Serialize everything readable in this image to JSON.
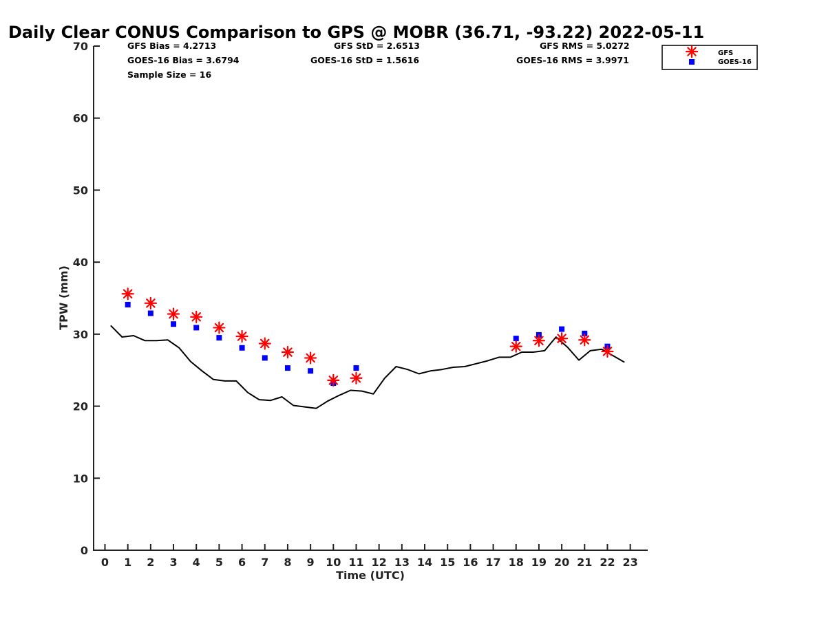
{
  "chart_data": {
    "type": "scatter",
    "title": "Daily Clear CONUS Comparison to GPS @ MOBR (36.71, -93.22) 2022-05-11",
    "xlabel": "Time (UTC)",
    "ylabel": "TPW (mm)",
    "xlim": [
      -0.5,
      23.75
    ],
    "ylim": [
      0,
      70
    ],
    "xticks": [
      "0",
      "1",
      "2",
      "3",
      "4",
      "5",
      "6",
      "7",
      "8",
      "9",
      "10",
      "11",
      "12",
      "13",
      "14",
      "15",
      "16",
      "17",
      "18",
      "19",
      "20",
      "21",
      "22",
      "23"
    ],
    "yticks": [
      "0",
      "10",
      "20",
      "30",
      "40",
      "50",
      "60",
      "70"
    ],
    "stats": {
      "gfs_bias": "GFS Bias = 4.2713",
      "goes_bias": "GOES-16 Bias = 3.6794",
      "sample_size": "Sample Size = 16",
      "gfs_std": "GFS StD = 2.6513",
      "goes_std": "GOES-16 StD = 1.5616",
      "gfs_rms": "GFS RMS = 5.0272",
      "goes_rms": "GOES-16 RMS = 3.9971"
    },
    "legend": {
      "position": "top-right",
      "entries": [
        "GFS",
        "GOES-16"
      ]
    },
    "series": [
      {
        "name": "GFS",
        "marker": "star",
        "color": "#ff0000",
        "x": [
          1,
          2,
          3,
          4,
          5,
          6,
          7,
          8,
          9,
          10,
          11,
          18,
          19,
          20,
          21,
          22
        ],
        "y": [
          35.6,
          34.3,
          32.8,
          32.4,
          30.9,
          29.7,
          28.7,
          27.5,
          26.7,
          23.6,
          23.9,
          28.3,
          29.1,
          29.4,
          29.2,
          27.6
        ]
      },
      {
        "name": "GOES-16",
        "marker": "square",
        "color": "#0000ff",
        "x": [
          1,
          2,
          3,
          4,
          5,
          6,
          7,
          8,
          9,
          10,
          11,
          18,
          19,
          20,
          21,
          22
        ],
        "y": [
          34.1,
          32.9,
          31.4,
          30.9,
          29.5,
          28.1,
          26.7,
          25.3,
          24.9,
          23.2,
          25.3,
          29.4,
          29.9,
          30.7,
          30.1,
          28.3
        ]
      },
      {
        "name": "GPS",
        "marker": "line",
        "color": "#000000",
        "x": [
          0.25,
          0.75,
          1.25,
          1.75,
          2.25,
          2.75,
          3.25,
          3.75,
          4.25,
          4.75,
          5.25,
          5.75,
          6.25,
          6.75,
          7.25,
          7.75,
          8.25,
          8.75,
          9.25,
          9.75,
          10.25,
          10.75,
          11.25,
          11.75,
          12.25,
          12.75,
          13.25,
          13.75,
          14.25,
          14.75,
          15.25,
          15.75,
          16.25,
          16.75,
          17.25,
          17.75,
          18.25,
          18.75,
          19.25,
          19.75,
          20.25,
          20.75,
          21.25,
          21.75,
          22.25,
          22.75
        ],
        "y": [
          31.2,
          29.6,
          29.8,
          29.1,
          29.1,
          29.2,
          28.1,
          26.2,
          24.9,
          23.7,
          23.5,
          23.5,
          21.9,
          20.9,
          20.8,
          21.3,
          20.1,
          19.9,
          19.7,
          20.7,
          21.5,
          22.2,
          22.1,
          21.7,
          23.9,
          25.5,
          25.1,
          24.5,
          24.9,
          25.1,
          25.4,
          25.5,
          25.9,
          26.3,
          26.8,
          26.8,
          27.5,
          27.5,
          27.7,
          29.6,
          28.2,
          26.4,
          27.7,
          27.9,
          27.0,
          26.1
        ]
      }
    ]
  }
}
